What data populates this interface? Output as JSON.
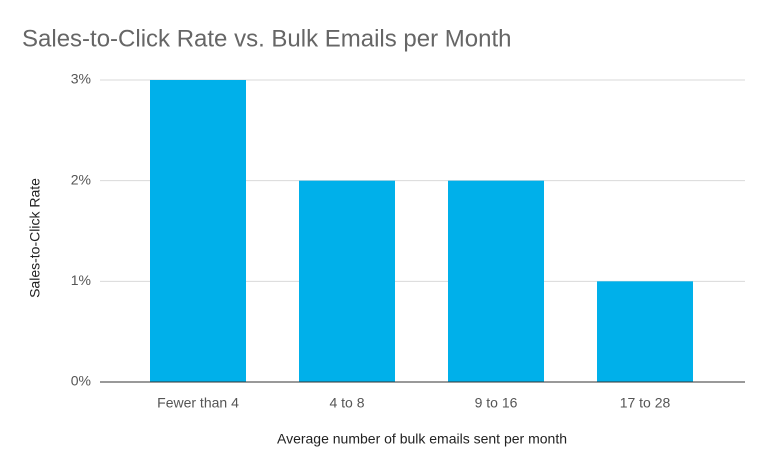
{
  "chart_data": {
    "type": "bar",
    "title": "Sales-to-Click Rate vs. Bulk Emails per Month",
    "x_label": "Average number of bulk emails sent per month",
    "y_label": "Sales-to-Click Rate",
    "categories": [
      "Fewer than 4",
      "4 to 8",
      "9 to 16",
      "17 to 28"
    ],
    "values": [
      3,
      2,
      2,
      1
    ],
    "color": "#00b0ea",
    "ylim": [
      0,
      3
    ],
    "yticks": [
      {
        "value": 0,
        "label": "0%"
      },
      {
        "value": 1,
        "label": "1%"
      },
      {
        "value": 2,
        "label": "2%"
      },
      {
        "value": 3,
        "label": "3%"
      }
    ],
    "grid": true
  }
}
